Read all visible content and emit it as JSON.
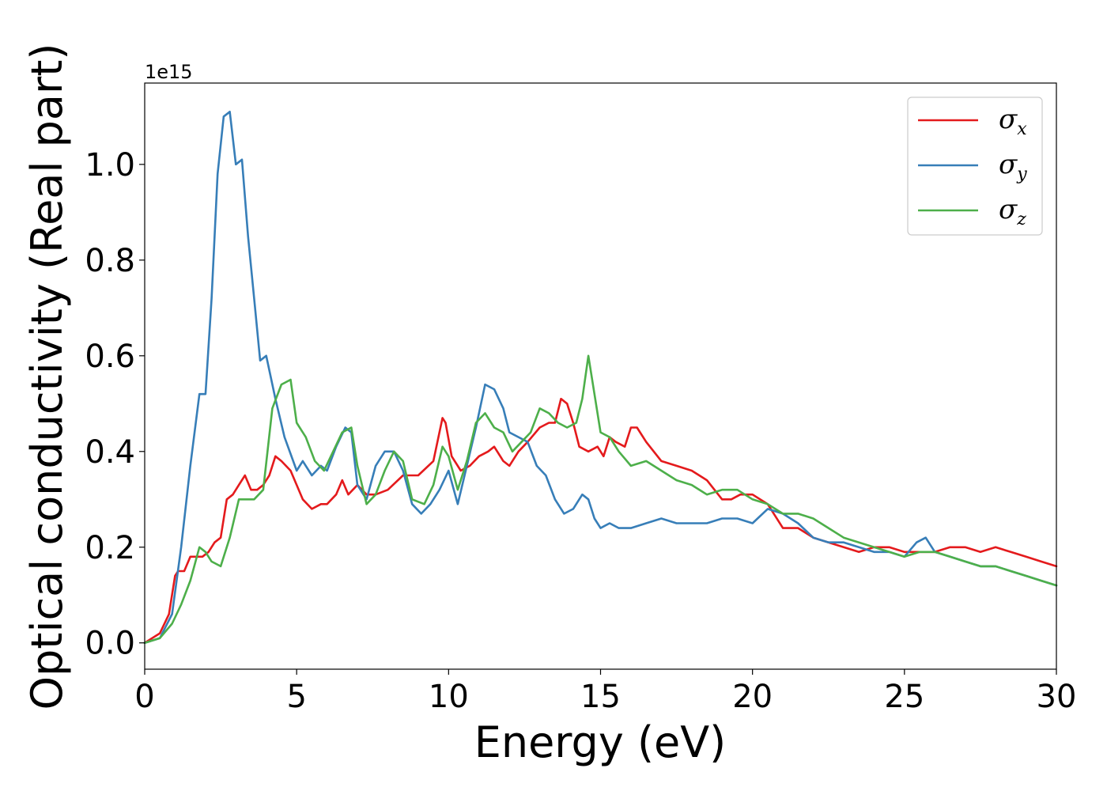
{
  "chart_data": {
    "type": "line",
    "xlabel": "Energy (eV)",
    "ylabel": "Optical conductivity (Real part)",
    "y_offset_label": "1e15",
    "y_multiplier": 1000000000000000.0,
    "xlim": [
      0,
      30
    ],
    "ylim": [
      -0.055,
      1.17
    ],
    "xticks": [
      0,
      5,
      10,
      15,
      20,
      25,
      30
    ],
    "xtick_labels": [
      "0",
      "5",
      "10",
      "15",
      "20",
      "25",
      "30"
    ],
    "yticks": [
      0.0,
      0.2,
      0.4,
      0.6,
      0.8,
      1.0
    ],
    "ytick_labels": [
      "0.0",
      "0.2",
      "0.4",
      "0.6",
      "0.8",
      "1.0"
    ],
    "grid": false,
    "legend_position": "top-right",
    "series": [
      {
        "name": "σx",
        "label_base": "σ",
        "label_sub": "x",
        "color": "#e41a1c",
        "x": [
          0,
          0.5,
          0.8,
          1.0,
          1.1,
          1.3,
          1.5,
          1.7,
          1.9,
          2.1,
          2.3,
          2.5,
          2.7,
          2.9,
          3.1,
          3.3,
          3.5,
          3.7,
          3.9,
          4.1,
          4.3,
          4.5,
          4.8,
          5.0,
          5.2,
          5.5,
          5.8,
          6.0,
          6.3,
          6.5,
          6.7,
          7.0,
          7.3,
          7.6,
          8.0,
          8.5,
          8.7,
          9.0,
          9.5,
          9.8,
          9.9,
          10.1,
          10.4,
          10.7,
          11.0,
          11.3,
          11.5,
          11.8,
          12.0,
          12.3,
          12.6,
          13.0,
          13.3,
          13.5,
          13.7,
          13.9,
          14.1,
          14.3,
          14.6,
          14.9,
          15.1,
          15.3,
          15.5,
          15.8,
          16.0,
          16.2,
          16.5,
          17.0,
          17.5,
          18.0,
          18.5,
          19.0,
          19.3,
          19.6,
          20.0,
          20.5,
          21.0,
          21.5,
          22.0,
          22.5,
          23.0,
          23.5,
          24.0,
          24.5,
          25.0,
          25.5,
          26.0,
          26.5,
          27.0,
          27.5,
          28.0,
          28.5,
          29.0,
          29.5,
          30.0
        ],
        "y": [
          0.0,
          0.02,
          0.06,
          0.14,
          0.15,
          0.15,
          0.18,
          0.18,
          0.18,
          0.19,
          0.21,
          0.22,
          0.3,
          0.31,
          0.33,
          0.35,
          0.32,
          0.32,
          0.33,
          0.35,
          0.39,
          0.38,
          0.36,
          0.33,
          0.3,
          0.28,
          0.29,
          0.29,
          0.31,
          0.34,
          0.31,
          0.33,
          0.31,
          0.31,
          0.32,
          0.35,
          0.35,
          0.35,
          0.38,
          0.47,
          0.46,
          0.39,
          0.36,
          0.37,
          0.39,
          0.4,
          0.41,
          0.38,
          0.37,
          0.4,
          0.42,
          0.45,
          0.46,
          0.46,
          0.51,
          0.5,
          0.46,
          0.41,
          0.4,
          0.41,
          0.39,
          0.43,
          0.42,
          0.41,
          0.45,
          0.45,
          0.42,
          0.38,
          0.37,
          0.36,
          0.34,
          0.3,
          0.3,
          0.31,
          0.31,
          0.29,
          0.24,
          0.24,
          0.22,
          0.21,
          0.2,
          0.19,
          0.2,
          0.2,
          0.19,
          0.19,
          0.19,
          0.2,
          0.2,
          0.19,
          0.2,
          0.19,
          0.18,
          0.17,
          0.16
        ]
      },
      {
        "name": "σy",
        "label_base": "σ",
        "label_sub": "y",
        "color": "#377eb8",
        "x": [
          0,
          0.5,
          0.9,
          1.2,
          1.5,
          1.8,
          2.0,
          2.2,
          2.4,
          2.6,
          2.8,
          3.0,
          3.2,
          3.4,
          3.6,
          3.8,
          4.0,
          4.3,
          4.6,
          5.0,
          5.2,
          5.5,
          5.8,
          6.0,
          6.3,
          6.6,
          6.8,
          7.0,
          7.3,
          7.6,
          7.9,
          8.2,
          8.5,
          8.8,
          9.1,
          9.4,
          9.7,
          10.0,
          10.3,
          10.6,
          10.9,
          11.2,
          11.5,
          11.8,
          12.0,
          12.3,
          12.6,
          12.9,
          13.2,
          13.5,
          13.8,
          14.1,
          14.4,
          14.6,
          14.8,
          15.0,
          15.3,
          15.6,
          16.0,
          16.5,
          17.0,
          17.5,
          18.0,
          18.5,
          19.0,
          19.5,
          20.0,
          20.5,
          21.0,
          21.5,
          22.0,
          22.5,
          23.0,
          23.5,
          24.0,
          24.5,
          25.0,
          25.4,
          25.7,
          26.0,
          26.5,
          27.0,
          27.5,
          28.0,
          28.5,
          29.0,
          29.5,
          30.0
        ],
        "y": [
          0.0,
          0.01,
          0.06,
          0.2,
          0.37,
          0.52,
          0.52,
          0.72,
          0.98,
          1.1,
          1.11,
          1.0,
          1.01,
          0.85,
          0.72,
          0.59,
          0.6,
          0.51,
          0.43,
          0.36,
          0.38,
          0.35,
          0.37,
          0.36,
          0.41,
          0.45,
          0.44,
          0.33,
          0.3,
          0.37,
          0.4,
          0.4,
          0.36,
          0.29,
          0.27,
          0.29,
          0.32,
          0.36,
          0.29,
          0.37,
          0.45,
          0.54,
          0.53,
          0.49,
          0.44,
          0.43,
          0.42,
          0.37,
          0.35,
          0.3,
          0.27,
          0.28,
          0.31,
          0.3,
          0.26,
          0.24,
          0.25,
          0.24,
          0.24,
          0.25,
          0.26,
          0.25,
          0.25,
          0.25,
          0.26,
          0.26,
          0.25,
          0.28,
          0.27,
          0.25,
          0.22,
          0.21,
          0.21,
          0.2,
          0.19,
          0.19,
          0.18,
          0.21,
          0.22,
          0.19,
          0.18,
          0.17,
          0.16,
          0.16,
          0.15,
          0.14,
          0.13,
          0.12
        ]
      },
      {
        "name": "σz",
        "label_base": "σ",
        "label_sub": "z",
        "color": "#4daf4a",
        "x": [
          0,
          0.5,
          0.9,
          1.2,
          1.5,
          1.8,
          2.0,
          2.2,
          2.5,
          2.8,
          3.1,
          3.3,
          3.6,
          3.9,
          4.2,
          4.5,
          4.8,
          5.0,
          5.3,
          5.6,
          5.9,
          6.2,
          6.5,
          6.8,
          7.0,
          7.3,
          7.6,
          7.9,
          8.2,
          8.5,
          8.8,
          9.2,
          9.5,
          9.8,
          10.0,
          10.3,
          10.6,
          10.9,
          11.2,
          11.5,
          11.8,
          12.1,
          12.4,
          12.7,
          13.0,
          13.3,
          13.6,
          13.9,
          14.2,
          14.4,
          14.6,
          14.8,
          15.0,
          15.3,
          15.6,
          16.0,
          16.5,
          17.0,
          17.5,
          18.0,
          18.5,
          19.0,
          19.5,
          20.0,
          20.5,
          21.0,
          21.5,
          22.0,
          22.5,
          23.0,
          23.5,
          24.0,
          24.5,
          25.0,
          25.5,
          26.0,
          26.5,
          27.0,
          27.5,
          28.0,
          28.5,
          29.0,
          29.5,
          30.0
        ],
        "y": [
          0.0,
          0.01,
          0.04,
          0.08,
          0.13,
          0.2,
          0.19,
          0.17,
          0.16,
          0.22,
          0.3,
          0.3,
          0.3,
          0.32,
          0.49,
          0.54,
          0.55,
          0.46,
          0.43,
          0.38,
          0.36,
          0.4,
          0.44,
          0.45,
          0.37,
          0.29,
          0.31,
          0.36,
          0.4,
          0.38,
          0.3,
          0.29,
          0.33,
          0.41,
          0.39,
          0.32,
          0.38,
          0.46,
          0.48,
          0.45,
          0.44,
          0.4,
          0.42,
          0.44,
          0.49,
          0.48,
          0.46,
          0.45,
          0.46,
          0.51,
          0.6,
          0.52,
          0.44,
          0.43,
          0.4,
          0.37,
          0.38,
          0.36,
          0.34,
          0.33,
          0.31,
          0.32,
          0.32,
          0.3,
          0.29,
          0.27,
          0.27,
          0.26,
          0.24,
          0.22,
          0.21,
          0.2,
          0.19,
          0.18,
          0.19,
          0.19,
          0.18,
          0.17,
          0.16,
          0.16,
          0.15,
          0.14,
          0.13,
          0.12
        ]
      }
    ]
  }
}
